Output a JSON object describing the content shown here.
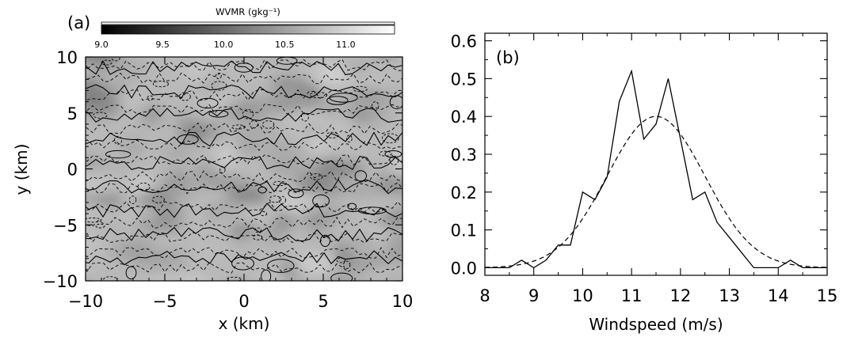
{
  "chart_data": [
    {
      "panel_label": "(a)",
      "type": "heatmap",
      "xlabel": "x (km)",
      "ylabel": "y (km)",
      "xlim": [
        -10,
        10
      ],
      "ylim": [
        -10,
        10
      ],
      "x_ticks": [
        "−10",
        "−5",
        "0",
        "5",
        "10"
      ],
      "y_ticks": [
        "10",
        "5",
        "0",
        "−5",
        "−10"
      ],
      "colorbar": {
        "title": "WVMR (gkg⁻¹)",
        "range": [
          9.0,
          11.4
        ],
        "ticks": [
          "9.0",
          "9.5",
          "10.0",
          "10.5",
          "11.0"
        ]
      },
      "contours": [
        "solid",
        "dashed"
      ],
      "colormap": "grayscale"
    },
    {
      "panel_label": "(b)",
      "type": "line",
      "xlabel": "Windspeed (m/s)",
      "ylabel": "",
      "xlim": [
        8,
        15
      ],
      "ylim": [
        -0.02,
        0.62
      ],
      "x_ticks": [
        "8",
        "9",
        "10",
        "11",
        "12",
        "13",
        "14",
        "15"
      ],
      "y_ticks": [
        "0.6",
        "0.5",
        "0.4",
        "0.3",
        "0.2",
        "0.1",
        "0.0"
      ],
      "series": [
        {
          "style": "solid",
          "x": [
            8.0,
            8.25,
            8.5,
            8.75,
            9.0,
            9.25,
            9.5,
            9.75,
            10.0,
            10.25,
            10.5,
            10.75,
            11.0,
            11.25,
            11.5,
            11.75,
            12.0,
            12.25,
            12.5,
            12.75,
            13.0,
            13.25,
            13.5,
            13.75,
            14.0,
            14.25,
            14.5,
            14.75,
            15.0
          ],
          "y": [
            0.0,
            0.0,
            0.0,
            0.02,
            0.0,
            0.02,
            0.06,
            0.06,
            0.2,
            0.18,
            0.24,
            0.44,
            0.52,
            0.34,
            0.38,
            0.5,
            0.34,
            0.18,
            0.2,
            0.12,
            0.08,
            0.04,
            0.0,
            0.0,
            0.0,
            0.02,
            0.0,
            0.0,
            0.0
          ]
        },
        {
          "style": "dashed",
          "type": "gaussian",
          "mean": 11.5,
          "sd": 1.0,
          "peak": 0.4
        }
      ]
    }
  ]
}
